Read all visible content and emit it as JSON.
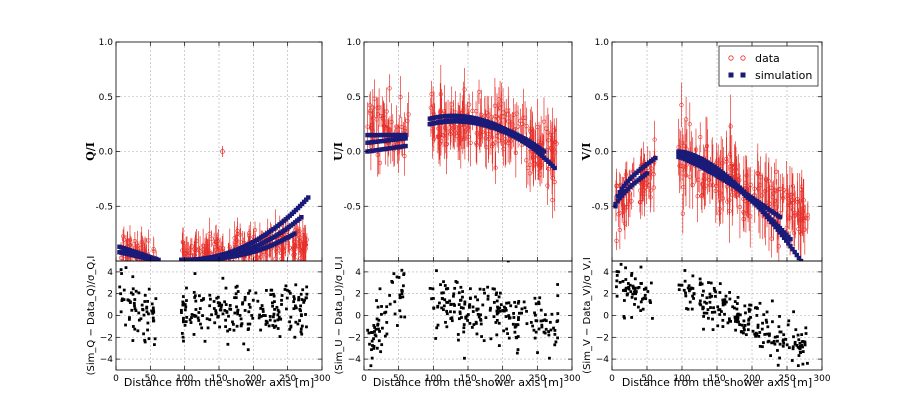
{
  "chart_data": [
    {
      "type": "scatter",
      "panel": "Q",
      "ylabel": "Q/I",
      "xlim": [
        0,
        300
      ],
      "ylim": [
        -1.0,
        1.0
      ],
      "yticks": [
        1.0,
        0.5,
        0.0,
        -0.5
      ],
      "ytick_labels": [
        "1.0",
        "0.5",
        "0.0",
        "-0.5"
      ],
      "outlier": {
        "x": 155,
        "y": 0.0,
        "err": 0.05
      },
      "series": [
        {
          "name": "data",
          "segments": [
            {
              "x0": 5,
              "x1": 60,
              "y0": -0.88,
              "y1": -0.98,
              "jitter": 0.08,
              "err": 0.1
            },
            {
              "x0": 95,
              "x1": 280,
              "y0": -0.97,
              "y1": -0.82,
              "jitter": 0.07,
              "err": 0.12
            }
          ]
        },
        {
          "name": "simulation",
          "tracks": [
            {
              "x0": 5,
              "x1": 62,
              "y0": -0.87,
              "y1": -0.99
            },
            {
              "x0": 5,
              "x1": 55,
              "y0": -0.92,
              "y1": -0.99
            },
            {
              "x0": 95,
              "x1": 280,
              "y0": -0.99,
              "y1": -0.42,
              "curve": 2.2
            },
            {
              "x0": 95,
              "x1": 270,
              "y0": -0.99,
              "y1": -0.6,
              "curve": 2.4
            },
            {
              "x0": 95,
              "x1": 260,
              "y0": -0.99,
              "y1": -0.75,
              "curve": 2.6
            }
          ]
        }
      ],
      "residual_ylabel": "(Sim_Q − Data_Q)/σ_Q,I",
      "residual": {
        "centers": [
          [
            5,
            60,
            1.5,
            -0.3
          ],
          [
            95,
            280,
            0.2,
            0.7
          ]
        ],
        "spread": 1.2
      }
    },
    {
      "type": "scatter",
      "panel": "U",
      "ylabel": "U/I",
      "xlim": [
        0,
        300
      ],
      "ylim": [
        -1.0,
        1.0
      ],
      "yticks": [
        1.0,
        0.5,
        0.0,
        -0.5
      ],
      "ytick_labels": [
        "1.0",
        "0.5",
        "0.0",
        "-0.5"
      ],
      "series": [
        {
          "name": "data",
          "segments": [
            {
              "x0": 5,
              "x1": 65,
              "y0": 0.28,
              "y1": 0.05,
              "jitter": 0.15,
              "err": 0.15
            },
            {
              "x0": 95,
              "x1": 280,
              "y0": 0.22,
              "y1": -0.1,
              "jitter": 0.14,
              "err": 0.18,
              "arch": 0.18
            }
          ]
        },
        {
          "name": "simulation",
          "tracks": [
            {
              "x0": 5,
              "x1": 60,
              "y0": 0.15,
              "y1": 0.15
            },
            {
              "x0": 5,
              "x1": 60,
              "y0": 0.08,
              "y1": 0.12
            },
            {
              "x0": 5,
              "x1": 60,
              "y0": 0.0,
              "y1": 0.05
            },
            {
              "x0": 95,
              "x1": 275,
              "y0": 0.3,
              "y1": -0.15,
              "arch": 0.18
            },
            {
              "x0": 95,
              "x1": 260,
              "y0": 0.25,
              "y1": 0.0,
              "arch": 0.13
            },
            {
              "x0": 95,
              "x1": 240,
              "y0": 0.25,
              "y1": 0.05,
              "arch": 0.1
            }
          ]
        }
      ],
      "residual_ylabel": "(Sim_U − Data_U)/σ_U,I",
      "residual": {
        "centers": [
          [
            5,
            60,
            -2.5,
            2.5
          ],
          [
            95,
            280,
            1.0,
            -0.5
          ]
        ],
        "spread": 1.4
      }
    },
    {
      "type": "scatter",
      "panel": "V",
      "ylabel": "V/I",
      "xlim": [
        0,
        300
      ],
      "ylim": [
        -1.0,
        1.0
      ],
      "yticks": [
        1.0,
        0.5,
        0.0,
        -0.5
      ],
      "ytick_labels": [
        "1.0",
        "0.5",
        "0.0",
        "-0.5"
      ],
      "legend": {
        "entries": [
          "data",
          "simulation"
        ],
        "placement": "top-right"
      },
      "series": [
        {
          "name": "data",
          "segments": [
            {
              "x0": 5,
              "x1": 65,
              "y0": -0.55,
              "y1": -0.15,
              "jitter": 0.12,
              "err": 0.15
            },
            {
              "x0": 95,
              "x1": 280,
              "y0": -0.05,
              "y1": -0.6,
              "jitter": 0.15,
              "err": 0.2
            }
          ]
        },
        {
          "name": "simulation",
          "tracks": [
            {
              "x0": 5,
              "x1": 62,
              "y0": -0.48,
              "y1": -0.06,
              "curve": 0.6
            },
            {
              "x0": 5,
              "x1": 50,
              "y0": -0.5,
              "y1": -0.2,
              "curve": 0.7
            },
            {
              "x0": 95,
              "x1": 270,
              "y0": 0.0,
              "y1": -1.0,
              "curve": 1.6
            },
            {
              "x0": 95,
              "x1": 255,
              "y0": -0.02,
              "y1": -0.8,
              "curve": 1.4
            },
            {
              "x0": 95,
              "x1": 240,
              "y0": -0.05,
              "y1": -0.6,
              "curve": 1.2
            }
          ]
        }
      ],
      "residual_ylabel": "(Sim_V − Data_V)/σ_V,I",
      "residual": {
        "centers": [
          [
            5,
            60,
            2.5,
            1.8
          ],
          [
            95,
            280,
            2.5,
            -3.2
          ]
        ],
        "spread": 1.0
      }
    }
  ],
  "x_axis": {
    "label": "Distance from the shower axis [m]",
    "ticks": [
      0,
      50,
      100,
      150,
      200,
      250,
      300
    ],
    "tick_labels": [
      "0",
      "50",
      "100",
      "150",
      "200",
      "250",
      "300"
    ]
  },
  "residual_axis": {
    "ylim": [
      -5,
      5
    ],
    "ticks": [
      4,
      2,
      0,
      -2,
      -4
    ],
    "tick_labels": [
      "4",
      "2",
      "0",
      "−2",
      "−4"
    ]
  },
  "colors": {
    "data": "#e8302a",
    "simulation": "#1a1a78",
    "residual": "#000000",
    "grid": "#b0b0b0"
  }
}
